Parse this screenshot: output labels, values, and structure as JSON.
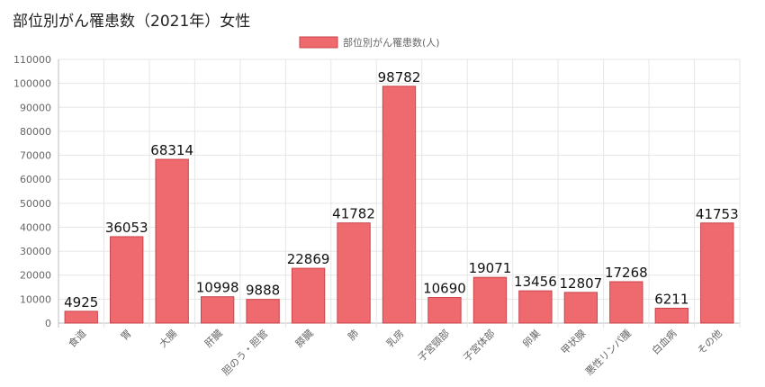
{
  "page": {
    "title": "部位別がん罹患数（2021年）女性"
  },
  "colors": {
    "bar_fill": "#ef6a6e",
    "bar_stroke": "#c9444a",
    "grid": "#e6e6e6",
    "axis": "#bdbdbd"
  },
  "chart_data": {
    "type": "bar",
    "title": "部位別がん罹患数（2021年）女性",
    "legend_position": "top-center",
    "grid": true,
    "ylim": [
      0,
      110000
    ],
    "yticks": [
      0,
      10000,
      20000,
      30000,
      40000,
      50000,
      60000,
      70000,
      80000,
      90000,
      100000,
      110000
    ],
    "categories": [
      "食道",
      "胃",
      "大腸",
      "肝臓",
      "胆のう・胆管",
      "膵臓",
      "肺",
      "乳房",
      "子宮頸部",
      "子宮体部",
      "卵巣",
      "甲状腺",
      "悪性リンパ腫",
      "白血病",
      "その他"
    ],
    "series": [
      {
        "name": "部位別がん罹患数(人)",
        "values": [
          4925,
          36053,
          68314,
          10998,
          9888,
          22869,
          41782,
          98782,
          10690,
          19071,
          13456,
          12807,
          17268,
          6211,
          41753
        ]
      }
    ]
  }
}
